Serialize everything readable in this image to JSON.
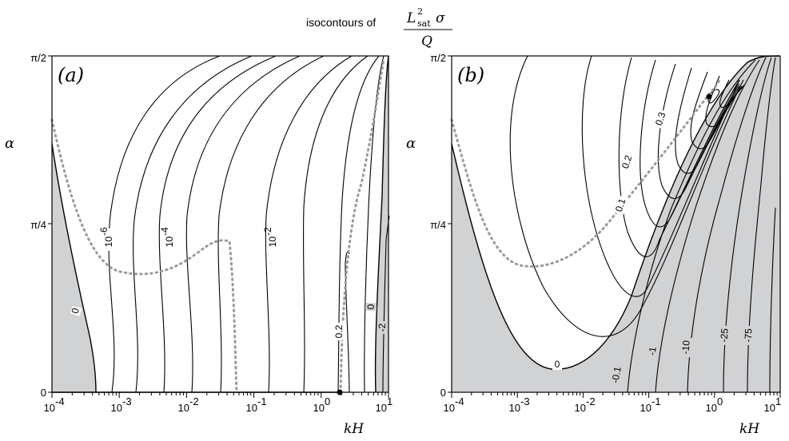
{
  "header": {
    "prefix": "isocontours of",
    "numerator": "L",
    "num_sup": "2",
    "num_sub": "sat",
    "num_sym": "σ",
    "denominator": "Q"
  },
  "chart_data": [
    {
      "type": "contour",
      "panel_label": "(a)",
      "xlabel": "kH",
      "ylabel": "α",
      "xscale": "log",
      "xlim": [
        0.0001,
        10
      ],
      "ylim_label": [
        "0",
        "π/2"
      ],
      "x_ticks": [
        {
          "base": "10",
          "exp": "-4"
        },
        {
          "base": "10",
          "exp": "-3"
        },
        {
          "base": "10",
          "exp": "-2"
        },
        {
          "base": "10",
          "exp": "-1"
        },
        {
          "base": "10",
          "exp": "0"
        },
        {
          "base": "10",
          "exp": "1"
        }
      ],
      "y_ticks": [
        "0",
        "π/4",
        "π/2"
      ],
      "contour_labels": [
        {
          "text": "0"
        },
        {
          "text": "10",
          "exp": "-6"
        },
        {
          "text": "10",
          "exp": "-4"
        },
        {
          "text": "10",
          "exp": "-2"
        },
        {
          "text": "0.2"
        },
        {
          "text": "0"
        },
        {
          "text": "-2"
        }
      ],
      "shaded_color": "#d1d2d4",
      "dotted_color": "#9a9a9a"
    },
    {
      "type": "contour",
      "panel_label": "(b)",
      "xlabel": "kH",
      "ylabel": "α",
      "xscale": "log",
      "xlim": [
        0.0001,
        10
      ],
      "ylim_label": [
        "0",
        "π/2"
      ],
      "x_ticks": [
        {
          "base": "10",
          "exp": "-4"
        },
        {
          "base": "10",
          "exp": "-3"
        },
        {
          "base": "10",
          "exp": "-2"
        },
        {
          "base": "10",
          "exp": "-1"
        },
        {
          "base": "10",
          "exp": "0"
        },
        {
          "base": "10",
          "exp": "1"
        }
      ],
      "y_ticks": [
        "0",
        "π/4",
        "π/2"
      ],
      "contour_labels": [
        {
          "text": "0"
        },
        {
          "text": "0.1"
        },
        {
          "text": "0.2"
        },
        {
          "text": "0.3"
        },
        {
          "text": "-0.1"
        },
        {
          "text": "-1"
        },
        {
          "text": "-10"
        },
        {
          "text": "-25"
        },
        {
          "text": "-75"
        }
      ],
      "shaded_color": "#d1d2d4",
      "dotted_color": "#9a9a9a"
    }
  ]
}
